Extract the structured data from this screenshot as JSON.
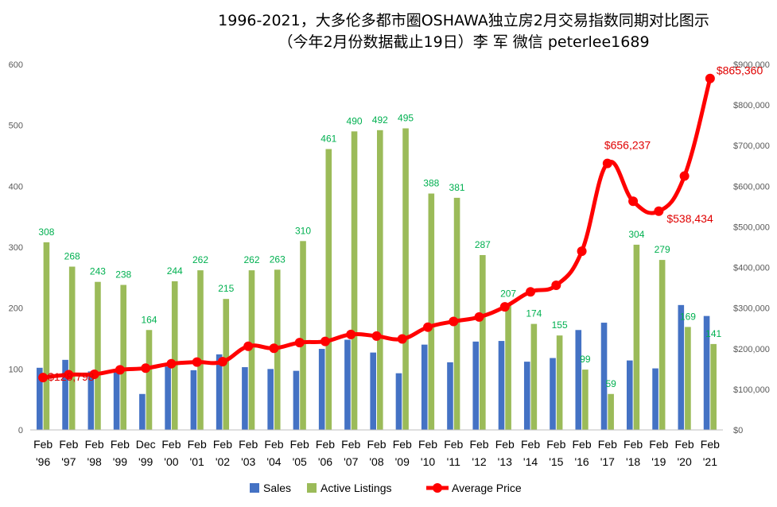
{
  "chart_data": {
    "type": "bar",
    "title": "1996-2021，大多伦多都市圈OSHAWA独立房2月交易指数同期对比图示",
    "subtitle": "（今年2月份数据截止19日）李 军  微信  peterlee1689",
    "categories": [
      {
        "line1": "Feb",
        "line2": "'96"
      },
      {
        "line1": "Feb",
        "line2": "'97"
      },
      {
        "line1": "Feb",
        "line2": "'98"
      },
      {
        "line1": "Feb",
        "line2": "'99"
      },
      {
        "line1": "Dec",
        "line2": "'99"
      },
      {
        "line1": "Feb",
        "line2": "'00"
      },
      {
        "line1": "Feb",
        "line2": "'01"
      },
      {
        "line1": "Feb",
        "line2": "'02"
      },
      {
        "line1": "Feb",
        "line2": "'03"
      },
      {
        "line1": "Feb",
        "line2": "'04"
      },
      {
        "line1": "Feb",
        "line2": "'05"
      },
      {
        "line1": "Feb",
        "line2": "'06"
      },
      {
        "line1": "Feb",
        "line2": "'07"
      },
      {
        "line1": "Feb",
        "line2": "'08"
      },
      {
        "line1": "Feb",
        "line2": "'09"
      },
      {
        "line1": "Feb",
        "line2": "'10"
      },
      {
        "line1": "Feb",
        "line2": "'11"
      },
      {
        "line1": "Feb",
        "line2": "'12"
      },
      {
        "line1": "Feb",
        "line2": "'13"
      },
      {
        "line1": "Feb",
        "line2": "'14"
      },
      {
        "line1": "Feb",
        "line2": "'15"
      },
      {
        "line1": "Feb",
        "line2": "'16"
      },
      {
        "line1": "Feb",
        "line2": "'17"
      },
      {
        "line1": "Feb",
        "line2": "'18"
      },
      {
        "line1": "Feb",
        "line2": "'19"
      },
      {
        "line1": "Feb",
        "line2": "'20"
      },
      {
        "line1": "Feb",
        "line2": "'21"
      }
    ],
    "series": [
      {
        "name": "Sales",
        "type": "bar",
        "axis": "left",
        "color": "#4472c4",
        "values": [
          102,
          115,
          96,
          100,
          59,
          104,
          98,
          124,
          103,
          100,
          97,
          133,
          148,
          127,
          93,
          140,
          111,
          145,
          146,
          112,
          118,
          164,
          176,
          114,
          101,
          205,
          187
        ]
      },
      {
        "name": "Active Listings",
        "type": "bar",
        "axis": "left",
        "color": "#9bbb59",
        "values": [
          308,
          268,
          243,
          238,
          164,
          244,
          262,
          215,
          262,
          263,
          310,
          461,
          490,
          492,
          495,
          388,
          381,
          287,
          207,
          174,
          155,
          99,
          59,
          304,
          279,
          169,
          141
        ],
        "labels": [
          "308",
          "268",
          "243",
          "238",
          "164",
          "244",
          "262",
          "215",
          "262",
          "263",
          "310",
          "461",
          "490",
          "492",
          "495",
          "388",
          "381",
          "287",
          "207",
          "174",
          "155",
          "99",
          "59",
          "304",
          "279",
          "169",
          "141"
        ]
      },
      {
        "name": "Average Price",
        "type": "line",
        "axis": "right",
        "color": "#ff0000",
        "values": [
          128798,
          136000,
          137000,
          148000,
          152000,
          163000,
          167000,
          168000,
          206000,
          201000,
          215000,
          218000,
          235000,
          231000,
          224000,
          253000,
          267000,
          278000,
          303000,
          340000,
          356000,
          440000,
          656237,
          563000,
          538434,
          625000,
          865360
        ],
        "labels": [
          {
            "index": 0,
            "text": "$128,798"
          },
          {
            "index": 22,
            "text": "$656,237"
          },
          {
            "index": 24,
            "text": "$538,434"
          },
          {
            "index": 26,
            "text": "$865,360"
          }
        ]
      }
    ],
    "y_left": {
      "min": 0,
      "max": 600,
      "step": 100,
      "ticks": [
        "0",
        "100",
        "200",
        "300",
        "400",
        "500",
        "600"
      ]
    },
    "y_right": {
      "min": 0,
      "max": 900000,
      "step": 100000,
      "ticks": [
        "$0",
        "$100,000",
        "$200,000",
        "$300,000",
        "$400,000",
        "$500,000",
        "$600,000",
        "$700,000",
        "$800,000",
        "$900,000"
      ]
    },
    "grid": false,
    "legend": "bottom"
  }
}
